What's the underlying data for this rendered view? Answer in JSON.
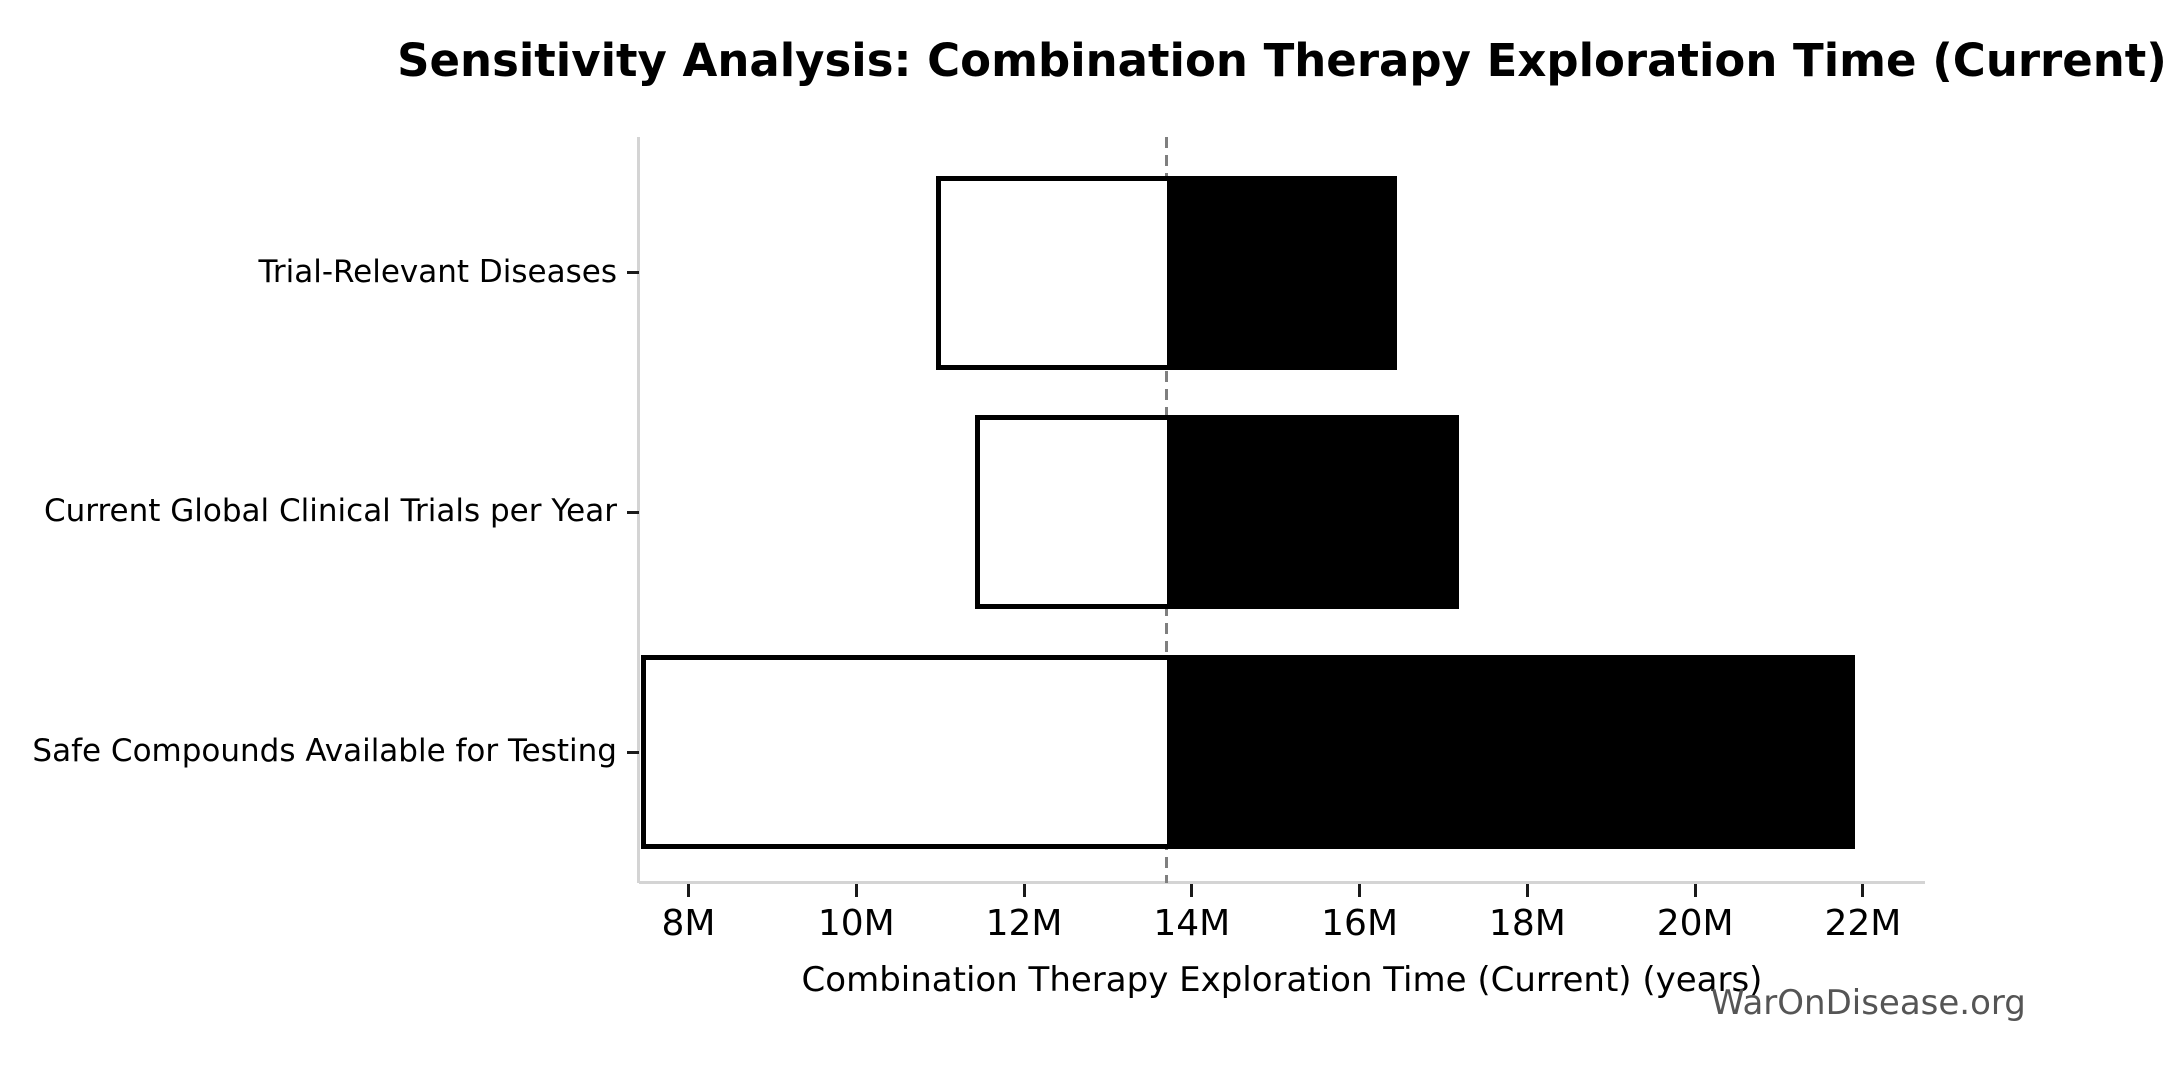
{
  "watermark": "WarOnDisease.org",
  "chart_data": {
    "type": "bar",
    "subtype": "tornado-sensitivity-horizontal",
    "title": "Sensitivity Analysis: Combination Therapy Exploration Time (Current)",
    "xlabel": "Combination Therapy Exploration Time (Current) (years)",
    "ylabel": "",
    "unit_suffix": "M",
    "baseline": 13.7,
    "xlim": [
      7.41,
      22.74
    ],
    "x_ticks": [
      8,
      10,
      12,
      14,
      16,
      18,
      20,
      22
    ],
    "x_tick_labels": [
      "8M",
      "10M",
      "12M",
      "14M",
      "16M",
      "18M",
      "20M",
      "22M"
    ],
    "grid": false,
    "legend": "none",
    "categories": [
      {
        "label": "Trial-Relevant Diseases",
        "low": 10.95,
        "high": 16.45
      },
      {
        "label": "Current Global Clinical Trials per Year",
        "low": 11.42,
        "high": 17.18
      },
      {
        "label": "Safe Compounds Available for Testing",
        "low": 7.43,
        "high": 21.9
      }
    ],
    "colors": {
      "bar_fill_below_baseline": "#ffffff",
      "bar_fill_above_baseline": "#000000",
      "bar_edge": "#000000",
      "baseline_line": "#7f7f7f",
      "spine": "#d4d4d4",
      "tick": "#1a1a1a",
      "text": "#000000",
      "watermark": "#555555"
    }
  }
}
